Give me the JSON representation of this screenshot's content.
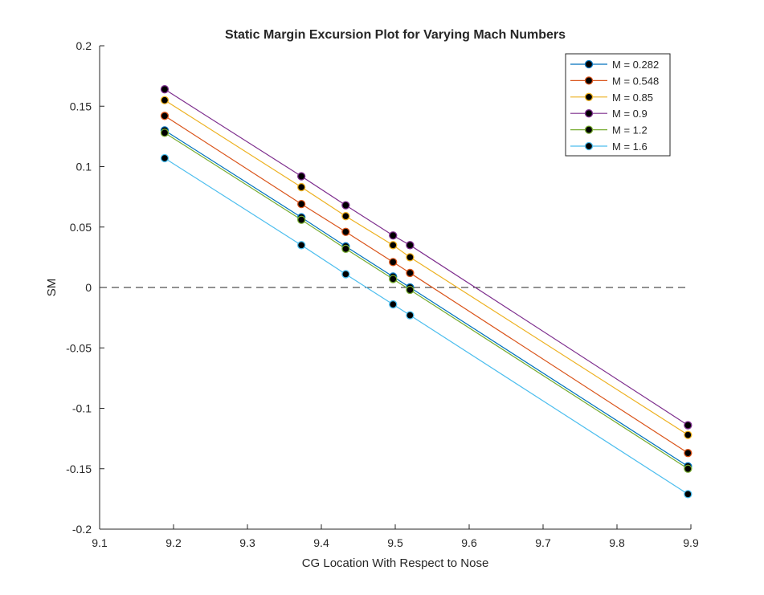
{
  "chart_data": {
    "type": "line",
    "title": "Static Margin Excursion Plot for Varying Mach Numbers",
    "xlabel": "CG Location With Respect to Nose",
    "ylabel": "SM",
    "xlim": [
      9.1,
      9.9
    ],
    "ylim": [
      -0.2,
      0.2
    ],
    "xticks": [
      "9.1",
      "9.2",
      "9.3",
      "9.4",
      "9.5",
      "9.6",
      "9.7",
      "9.8",
      "9.9"
    ],
    "yticks": [
      "-0.2",
      "-0.15",
      "-0.1",
      "-0.05",
      "0",
      "0.05",
      "0.1",
      "0.15",
      "0.2"
    ],
    "x": [
      9.188,
      9.373,
      9.433,
      9.497,
      9.52,
      9.896
    ],
    "grid": false,
    "legend_position": "top-right",
    "reference_line": {
      "y": 0,
      "style": "dashed"
    },
    "series": [
      {
        "name": "M = 0.282",
        "color": "#0072BD",
        "values": [
          0.13,
          0.058,
          0.034,
          0.009,
          0.0,
          -0.148
        ]
      },
      {
        "name": "M = 0.548",
        "color": "#D95319",
        "values": [
          0.142,
          0.069,
          0.046,
          0.021,
          0.012,
          -0.137
        ]
      },
      {
        "name": "M = 0.85",
        "color": "#EDB120",
        "values": [
          0.155,
          0.083,
          0.059,
          0.035,
          0.025,
          -0.122
        ]
      },
      {
        "name": "M = 0.9",
        "color": "#7E2F8E",
        "values": [
          0.164,
          0.092,
          0.068,
          0.043,
          0.035,
          -0.114
        ]
      },
      {
        "name": "M = 1.2",
        "color": "#77AC30",
        "values": [
          0.128,
          0.056,
          0.032,
          0.007,
          -0.002,
          -0.15
        ]
      },
      {
        "name": "M = 1.6",
        "color": "#4DBEEE",
        "values": [
          0.107,
          0.035,
          0.011,
          -0.014,
          -0.023,
          -0.171
        ]
      }
    ]
  }
}
